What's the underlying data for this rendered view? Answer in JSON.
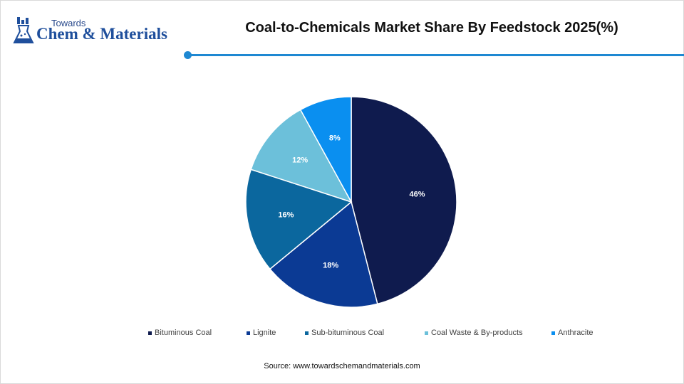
{
  "brand": {
    "small": "Towards",
    "big": "Chem & Materials",
    "color": "#1f4f9c"
  },
  "title": "Coal-to-Chemicals Market Share By Feedstock 2025(%)",
  "accent_color": "#1e88d2",
  "source": "Source: www.towardschemandmaterials.com",
  "chart_data": {
    "type": "pie",
    "title": "Coal-to-Chemicals Market Share By Feedstock 2025(%)",
    "unit": "%",
    "legend_position": "bottom",
    "slices": [
      {
        "label": "Bituminous Coal",
        "value": 46,
        "display": "46%",
        "color": "#0f1b4e"
      },
      {
        "label": "Lignite",
        "value": 18,
        "display": "18%",
        "color": "#0b3a94"
      },
      {
        "label": "Sub-bituminous Coal",
        "value": 16,
        "display": "16%",
        "color": "#0b679e"
      },
      {
        "label": "Coal Waste & By-products",
        "value": 12,
        "display": "12%",
        "color": "#6cc0da"
      },
      {
        "label": "Anthracite",
        "value": 8,
        "display": "8%",
        "color": "#0a8ff0"
      }
    ]
  }
}
